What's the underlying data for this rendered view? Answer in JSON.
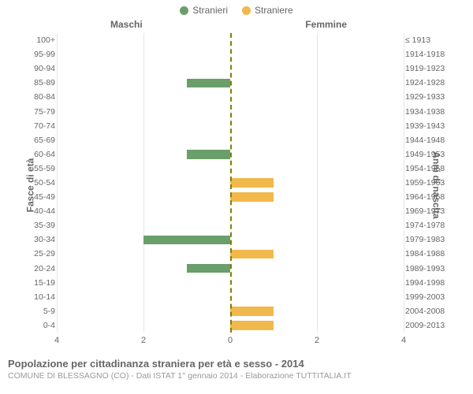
{
  "legend": {
    "male": {
      "label": "Stranieri",
      "color": "#6a9e6a"
    },
    "female": {
      "label": "Straniere",
      "color": "#f1b84b"
    }
  },
  "col_headers": {
    "left": "Maschi",
    "right": "Femmine"
  },
  "yaxis": {
    "left_title": "Fasce di età",
    "right_title": "Anni di nascita"
  },
  "xaxis": {
    "max": 4,
    "ticks_left": [
      4,
      2,
      0
    ],
    "ticks_right": [
      0,
      2,
      4
    ]
  },
  "style": {
    "bg": "#ffffff",
    "grid_color": "#e6e6e6",
    "center_dash_color": "#808000",
    "text_color": "#666666",
    "subtext_color": "#999999"
  },
  "rows": [
    {
      "age": "100+",
      "birth": "≤ 1913",
      "m": 0,
      "f": 0
    },
    {
      "age": "95-99",
      "birth": "1914-1918",
      "m": 0,
      "f": 0
    },
    {
      "age": "90-94",
      "birth": "1919-1923",
      "m": 0,
      "f": 0
    },
    {
      "age": "85-89",
      "birth": "1924-1928",
      "m": 1,
      "f": 0
    },
    {
      "age": "80-84",
      "birth": "1929-1933",
      "m": 0,
      "f": 0
    },
    {
      "age": "75-79",
      "birth": "1934-1938",
      "m": 0,
      "f": 0
    },
    {
      "age": "70-74",
      "birth": "1939-1943",
      "m": 0,
      "f": 0
    },
    {
      "age": "65-69",
      "birth": "1944-1948",
      "m": 0,
      "f": 0
    },
    {
      "age": "60-64",
      "birth": "1949-1953",
      "m": 1,
      "f": 0
    },
    {
      "age": "55-59",
      "birth": "1954-1958",
      "m": 0,
      "f": 0
    },
    {
      "age": "50-54",
      "birth": "1959-1963",
      "m": 0,
      "f": 1
    },
    {
      "age": "45-49",
      "birth": "1964-1968",
      "m": 0,
      "f": 1
    },
    {
      "age": "40-44",
      "birth": "1969-1973",
      "m": 0,
      "f": 0
    },
    {
      "age": "35-39",
      "birth": "1974-1978",
      "m": 0,
      "f": 0
    },
    {
      "age": "30-34",
      "birth": "1979-1983",
      "m": 2,
      "f": 0
    },
    {
      "age": "25-29",
      "birth": "1984-1988",
      "m": 0,
      "f": 1
    },
    {
      "age": "20-24",
      "birth": "1989-1993",
      "m": 1,
      "f": 0
    },
    {
      "age": "15-19",
      "birth": "1994-1998",
      "m": 0,
      "f": 0
    },
    {
      "age": "10-14",
      "birth": "1999-2003",
      "m": 0,
      "f": 0
    },
    {
      "age": "5-9",
      "birth": "2004-2008",
      "m": 0,
      "f": 1
    },
    {
      "age": "0-4",
      "birth": "2009-2013",
      "m": 0,
      "f": 1
    }
  ],
  "footer": {
    "title": "Popolazione per cittadinanza straniera per età e sesso - 2014",
    "subtitle": "COMUNE DI BLESSAGNO (CO) - Dati ISTAT 1° gennaio 2014 - Elaborazione TUTTITALIA.IT"
  }
}
